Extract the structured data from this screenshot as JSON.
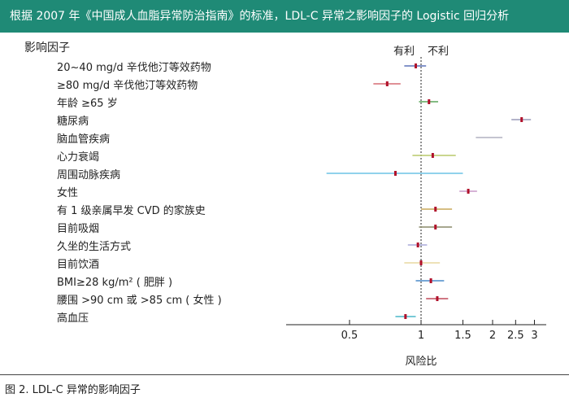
{
  "header": {
    "title": "根据 2007 年《中国成人血脂异常防治指南》的标准，LDL-C 异常之影响因子的 Logistic 回归分析"
  },
  "caption": "图 2. LDL-C 异常的影响因子",
  "chart_data": {
    "type": "forest",
    "title": "根据 2007 年《中国成人血脂异常防治指南》的标准，LDL-C 异常之影响因子的 Logistic 回归分析",
    "factor_header": "影响因子",
    "xlabel": "风险比",
    "legend_left": "有利",
    "legend_right": "不利",
    "x_scale": "log",
    "xlim": [
      0.3,
      3.1
    ],
    "reference": 1,
    "ticks": [
      0.5,
      1,
      1.5,
      2,
      2.5,
      3
    ],
    "tick_labels": [
      "0.5",
      "1",
      "1.5",
      "2",
      "2.5",
      "3"
    ],
    "factors": [
      {
        "label": "20~40 mg/d 辛伐他汀等效药物",
        "hr": 0.95,
        "lo": 0.85,
        "hi": 1.05,
        "color": "#5b72b8",
        "marker": true
      },
      {
        "label": "≥80 mg/d 辛伐他汀等效药物",
        "hr": 0.72,
        "lo": 0.63,
        "hi": 0.82,
        "color": "#d66b73",
        "marker": true
      },
      {
        "label": "年龄 ≥65 岁",
        "hr": 1.08,
        "lo": 0.98,
        "hi": 1.18,
        "color": "#5aa65a",
        "marker": true
      },
      {
        "label": "糖尿病",
        "hr": 2.65,
        "lo": 2.4,
        "hi": 2.9,
        "color": "#9a9ab8",
        "marker": true
      },
      {
        "label": "脑血管疾病",
        "hr": null,
        "lo": 1.7,
        "hi": 2.2,
        "color": "#b0b0c0",
        "marker": false
      },
      {
        "label": "心力衰竭",
        "hr": 1.12,
        "lo": 0.92,
        "hi": 1.4,
        "color": "#b8c86a",
        "marker": true
      },
      {
        "label": "周围动脉疾病",
        "hr": 0.78,
        "lo": 0.4,
        "hi": 1.5,
        "color": "#6cc4e6",
        "marker": true
      },
      {
        "label": "女性",
        "hr": 1.58,
        "lo": 1.45,
        "hi": 1.72,
        "color": "#c89ac8",
        "marker": true
      },
      {
        "label": "有 1 级亲属早发 CVD 的家族史",
        "hr": 1.15,
        "lo": 1.0,
        "hi": 1.35,
        "color": "#c8a85a",
        "marker": true
      },
      {
        "label": "目前吸烟",
        "hr": 1.15,
        "lo": 0.98,
        "hi": 1.35,
        "color": "#8a8a6a",
        "marker": true
      },
      {
        "label": "久坐的生活方式",
        "hr": 0.97,
        "lo": 0.88,
        "hi": 1.06,
        "color": "#a8a8d8",
        "marker": true
      },
      {
        "label": "目前饮酒",
        "hr": 1.0,
        "lo": 0.85,
        "hi": 1.2,
        "color": "#e8d8a0",
        "marker": true
      },
      {
        "label": "BMI≥28 kg/m² ( 肥胖 )",
        "hr": 1.1,
        "lo": 0.95,
        "hi": 1.25,
        "color": "#4a8ac8",
        "marker": true
      },
      {
        "label": "腰围 >90 cm 或 >85 cm ( 女性 )",
        "hr": 1.17,
        "lo": 1.05,
        "hi": 1.3,
        "color": "#c04a5a",
        "marker": true
      },
      {
        "label": "高血压",
        "hr": 0.86,
        "lo": 0.78,
        "hi": 0.95,
        "color": "#4ab8c8",
        "marker": true
      }
    ]
  }
}
